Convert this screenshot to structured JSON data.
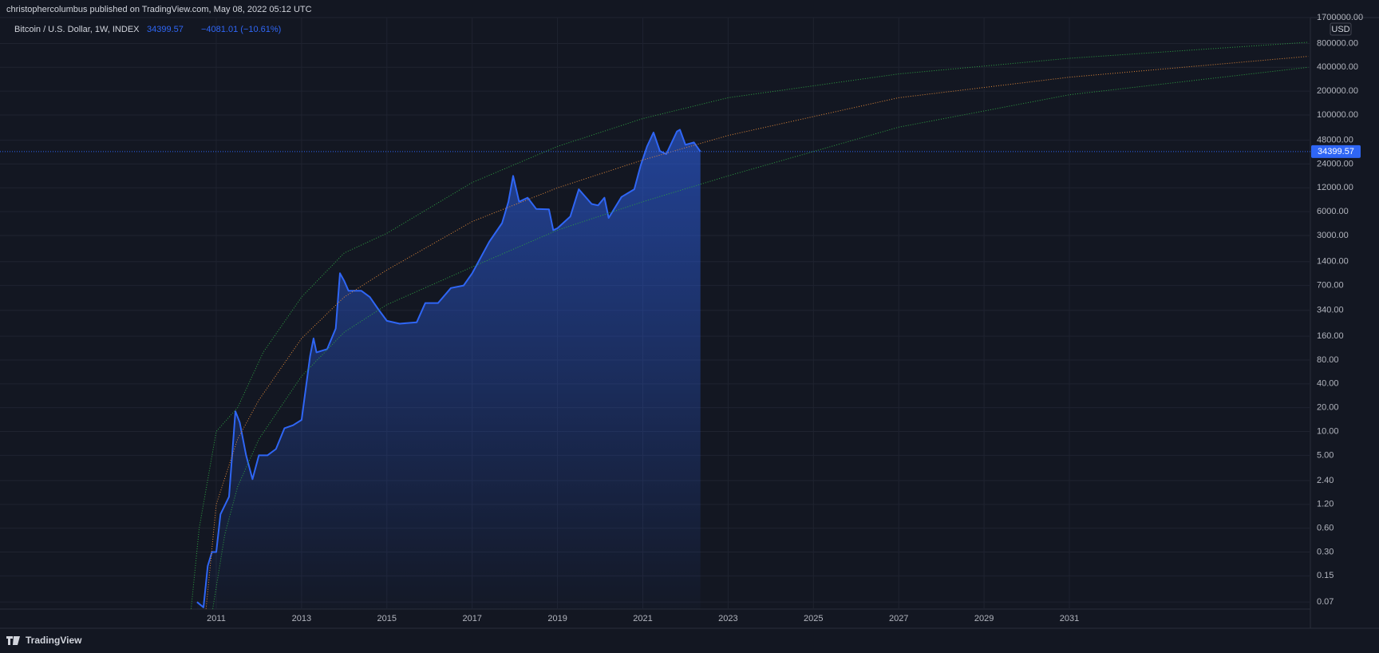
{
  "chart_data": {
    "type": "line",
    "publisher": "christophercolumbus published on TradingView.com, May 08, 2022 05:12 UTC",
    "change": "−4081.01 (−10.61%)",
    "currency": "USD",
    "brand": "TradingView",
    "log_scale": true,
    "grid": true,
    "xlim": [
      2005.93,
      2036.65
    ],
    "xticks": [
      2011,
      2013,
      2015,
      2017,
      2019,
      2021,
      2023,
      2025,
      2027,
      2029,
      2031
    ],
    "ylim": [
      0.057,
      1700000
    ],
    "yticks": [
      {
        "value": 1700000,
        "label": "1700000.00"
      },
      {
        "value": 800000,
        "label": "800000.00"
      },
      {
        "value": 400000,
        "label": "400000.00"
      },
      {
        "value": 200000,
        "label": "200000.00"
      },
      {
        "value": 100000,
        "label": "100000.00"
      },
      {
        "value": 48000,
        "label": "48000.00"
      },
      {
        "value": 24000,
        "label": "24000.00"
      },
      {
        "value": 12000,
        "label": "12000.00"
      },
      {
        "value": 6000,
        "label": "6000.00"
      },
      {
        "value": 3000,
        "label": "3000.00"
      },
      {
        "value": 1400,
        "label": "1400.00"
      },
      {
        "value": 700,
        "label": "700.00"
      },
      {
        "value": 340,
        "label": "340.00"
      },
      {
        "value": 160,
        "label": "160.00"
      },
      {
        "value": 80,
        "label": "80.00"
      },
      {
        "value": 40,
        "label": "40.00"
      },
      {
        "value": 20,
        "label": "20.00"
      },
      {
        "value": 10,
        "label": "10.00"
      },
      {
        "value": 5,
        "label": "5.00"
      },
      {
        "value": 2.4,
        "label": "2.40"
      },
      {
        "value": 1.2,
        "label": "1.20"
      },
      {
        "value": 0.6,
        "label": "0.60"
      },
      {
        "value": 0.3,
        "label": "0.30"
      },
      {
        "value": 0.15,
        "label": "0.15"
      },
      {
        "value": 0.07,
        "label": "0.07"
      }
    ],
    "series": [
      {
        "name": "Bitcoin / U.S. Dollar, 1W, INDEX",
        "color": "#2f66f5",
        "fill": true,
        "x": [
          2010.55,
          2010.7,
          2010.8,
          2010.9,
          2011.0,
          2011.1,
          2011.3,
          2011.4,
          2011.45,
          2011.55,
          2011.7,
          2011.85,
          2012.0,
          2012.2,
          2012.4,
          2012.6,
          2012.8,
          2013.0,
          2013.2,
          2013.28,
          2013.35,
          2013.6,
          2013.8,
          2013.9,
          2014.0,
          2014.1,
          2014.4,
          2014.6,
          2014.8,
          2015.0,
          2015.3,
          2015.7,
          2015.9,
          2016.2,
          2016.5,
          2016.8,
          2017.0,
          2017.4,
          2017.7,
          2017.85,
          2017.96,
          2018.1,
          2018.3,
          2018.5,
          2018.8,
          2018.9,
          2019.0,
          2019.3,
          2019.5,
          2019.8,
          2019.95,
          2020.1,
          2020.2,
          2020.5,
          2020.8,
          2020.95,
          2021.1,
          2021.25,
          2021.4,
          2021.55,
          2021.8,
          2021.87,
          2022.0,
          2022.2,
          2022.35
        ],
        "values": [
          0.07,
          0.06,
          0.2,
          0.3,
          0.3,
          0.9,
          1.5,
          8,
          18,
          13,
          5,
          2.5,
          5,
          5,
          6,
          11,
          12,
          14,
          90,
          150,
          100,
          110,
          200,
          1000,
          800,
          600,
          600,
          500,
          350,
          250,
          230,
          240,
          420,
          420,
          650,
          700,
          1000,
          2500,
          4300,
          8000,
          17000,
          8000,
          9000,
          6500,
          6400,
          3500,
          3700,
          5200,
          11500,
          7500,
          7200,
          9000,
          5000,
          9200,
          11500,
          23000,
          40000,
          60000,
          35000,
          32000,
          62000,
          65000,
          42000,
          45000,
          34399.57
        ]
      },
      {
        "color": "#2ea043",
        "dotted": true,
        "x": [
          2010.4,
          2010.6,
          2011.0,
          2011.5,
          2012.1,
          2013.0,
          2014.0,
          2015.0,
          2017.0,
          2019.0,
          2021.0,
          2023.0,
          2027.0,
          2031.0,
          2036.6
        ],
        "values": [
          0.05,
          0.6,
          10,
          20,
          100,
          500,
          1800,
          3200,
          14000,
          40000,
          90000,
          165000,
          330000,
          520000,
          830000
        ]
      },
      {
        "color": "#e0883a",
        "dotted": true,
        "x": [
          2010.75,
          2011.0,
          2011.5,
          2012.0,
          2013.0,
          2014.0,
          2015.0,
          2017.0,
          2019.0,
          2021.0,
          2023.0,
          2027.0,
          2031.0,
          2036.6
        ],
        "values": [
          0.05,
          1.2,
          8,
          25,
          150,
          500,
          1100,
          4500,
          12000,
          27000,
          55000,
          165000,
          300000,
          550000
        ]
      },
      {
        "color": "#2ea043",
        "dotted": true,
        "x": [
          2010.9,
          2011.2,
          2011.5,
          2012.0,
          2013.0,
          2014.0,
          2015.0,
          2017.0,
          2019.0,
          2021.0,
          2023.0,
          2027.0,
          2031.0,
          2036.6
        ],
        "values": [
          0.05,
          0.5,
          2,
          8,
          50,
          180,
          400,
          1200,
          3500,
          8000,
          17000,
          70000,
          180000,
          400000
        ]
      }
    ]
  }
}
